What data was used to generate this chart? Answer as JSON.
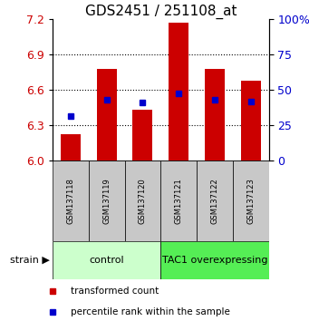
{
  "title": "GDS2451 / 251108_at",
  "samples": [
    "GSM137118",
    "GSM137119",
    "GSM137120",
    "GSM137121",
    "GSM137122",
    "GSM137123"
  ],
  "bar_values": [
    6.22,
    6.78,
    6.43,
    7.17,
    6.78,
    6.68
  ],
  "bar_base": 6.0,
  "percentile_values": [
    6.38,
    6.52,
    6.49,
    6.57,
    6.52,
    6.5
  ],
  "ylim_left": [
    6.0,
    7.2
  ],
  "ylim_right": [
    0,
    100
  ],
  "yticks_left": [
    6.0,
    6.3,
    6.6,
    6.9,
    7.2
  ],
  "yticks_right": [
    0,
    25,
    50,
    75,
    100
  ],
  "bar_color": "#cc0000",
  "percentile_color": "#0000cc",
  "bar_width": 0.55,
  "group_control_color": "#ccffcc",
  "group_tac1_color": "#55ee55",
  "sample_box_color": "#c8c8c8",
  "ylabel_left_color": "#cc0000",
  "ylabel_right_color": "#0000cc",
  "title_fontsize": 11,
  "tick_fontsize": 9,
  "sample_fontsize": 6,
  "group_fontsize": 8,
  "legend_fontsize": 7.5
}
